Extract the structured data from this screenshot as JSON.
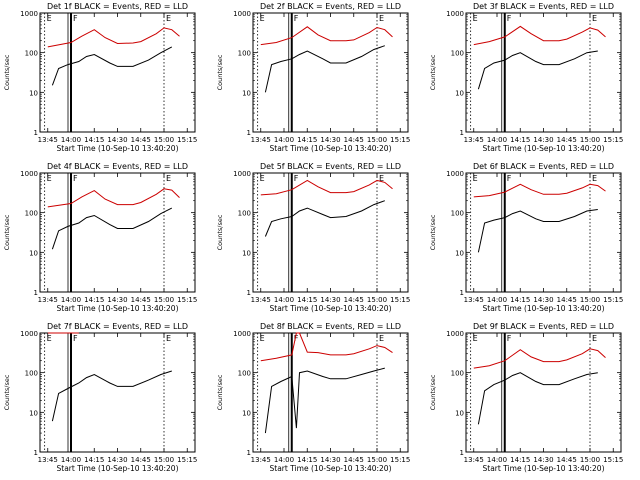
{
  "chart_data": [
    {
      "type": "line",
      "title": "Det 1f BLACK = Events, RED = LLD",
      "xlabel": "Start Time (10-Sep-10 13:40:20)",
      "ylabel": "Counts/sec",
      "x_ticks": [
        "13:45",
        "14:00",
        "14:15",
        "14:30",
        "14:45",
        "15:00",
        "15:15"
      ],
      "y_ticks": [
        "1",
        "10",
        "100",
        "1000"
      ],
      "yscale": "log",
      "ylim": [
        1,
        1000
      ],
      "markers": [
        {
          "label": "E",
          "time": "13:43"
        },
        {
          "label": "F",
          "time": "14:00"
        },
        {
          "label": "E",
          "time": "15:00"
        }
      ],
      "series": [
        {
          "color": "#cc0000",
          "x": [
            "13:45",
            "14:00",
            "14:07",
            "14:15",
            "14:22",
            "14:30",
            "14:40",
            "14:45",
            "14:55",
            "15:00",
            "15:05",
            "15:10"
          ],
          "y": [
            140,
            180,
            260,
            380,
            240,
            170,
            175,
            190,
            300,
            420,
            380,
            260
          ]
        },
        {
          "color": "#000000",
          "x": [
            "13:48",
            "13:52",
            "13:58",
            "14:05",
            "14:10",
            "14:15",
            "14:25",
            "14:30",
            "14:40",
            "14:50",
            "14:58",
            "15:05"
          ],
          "y": [
            15,
            40,
            50,
            60,
            80,
            90,
            55,
            45,
            45,
            65,
            100,
            140
          ]
        }
      ]
    },
    {
      "type": "line",
      "title": "Det 2f BLACK = Events, RED = LLD",
      "xlabel": "Start Time (10-Sep-10 13:40:20)",
      "ylabel": "Counts/sec",
      "x_ticks": [
        "13:45",
        "14:00",
        "14:15",
        "14:30",
        "14:45",
        "15:00",
        "15:15"
      ],
      "y_ticks": [
        "1",
        "10",
        "100",
        "1000"
      ],
      "yscale": "log",
      "ylim": [
        1,
        1000
      ],
      "markers": [
        {
          "label": "E",
          "time": "13:43"
        },
        {
          "label": "F",
          "time": "14:05"
        },
        {
          "label": "E",
          "time": "15:00"
        }
      ],
      "series": [
        {
          "color": "#cc0000",
          "x": [
            "13:45",
            "13:55",
            "14:05",
            "14:15",
            "14:22",
            "14:30",
            "14:40",
            "14:45",
            "14:55",
            "15:00",
            "15:05",
            "15:10"
          ],
          "y": [
            160,
            180,
            240,
            450,
            280,
            200,
            200,
            210,
            320,
            430,
            380,
            250
          ]
        },
        {
          "color": "#000000",
          "x": [
            "13:48",
            "13:52",
            "13:58",
            "14:05",
            "14:10",
            "14:15",
            "14:25",
            "14:30",
            "14:40",
            "14:50",
            "14:58",
            "15:05"
          ],
          "y": [
            10,
            50,
            60,
            70,
            90,
            110,
            70,
            55,
            55,
            80,
            120,
            150
          ]
        }
      ]
    },
    {
      "type": "line",
      "title": "Det 3f BLACK = Events, RED = LLD",
      "xlabel": "Start Time (10-Sep-10 13:40:20)",
      "ylabel": "Counts/sec",
      "x_ticks": [
        "13:45",
        "14:00",
        "14:15",
        "14:30",
        "14:45",
        "15:00",
        "15:15"
      ],
      "y_ticks": [
        "1",
        "10",
        "100",
        "1000"
      ],
      "yscale": "log",
      "ylim": [
        1,
        1000
      ],
      "markers": [
        {
          "label": "E",
          "time": "13:43"
        },
        {
          "label": "F",
          "time": "14:05"
        },
        {
          "label": "E",
          "time": "15:00"
        }
      ],
      "series": [
        {
          "color": "#cc0000",
          "x": [
            "13:45",
            "13:55",
            "14:05",
            "14:15",
            "14:22",
            "14:30",
            "14:40",
            "14:45",
            "14:55",
            "15:00",
            "15:05",
            "15:10"
          ],
          "y": [
            160,
            190,
            250,
            460,
            300,
            200,
            200,
            220,
            330,
            420,
            370,
            250
          ]
        },
        {
          "color": "#000000",
          "x": [
            "13:48",
            "13:52",
            "13:58",
            "14:05",
            "14:10",
            "14:15",
            "14:25",
            "14:30",
            "14:40",
            "14:50",
            "14:58",
            "15:05"
          ],
          "y": [
            12,
            40,
            55,
            65,
            85,
            100,
            60,
            50,
            50,
            70,
            100,
            110
          ]
        }
      ]
    },
    {
      "type": "line",
      "title": "Det 4f BLACK = Events, RED = LLD",
      "xlabel": "Start Time (10-Sep-10 13:40:20)",
      "ylabel": "Counts/sec",
      "x_ticks": [
        "13:45",
        "14:00",
        "14:15",
        "14:30",
        "14:45",
        "15:00",
        "15:15"
      ],
      "y_ticks": [
        "1",
        "10",
        "100",
        "1000"
      ],
      "yscale": "log",
      "ylim": [
        1,
        1000
      ],
      "markers": [
        {
          "label": "E",
          "time": "13:43"
        },
        {
          "label": "F",
          "time": "14:00"
        },
        {
          "label": "E",
          "time": "15:00"
        }
      ],
      "series": [
        {
          "color": "#cc0000",
          "x": [
            "13:45",
            "14:00",
            "14:07",
            "14:15",
            "14:22",
            "14:30",
            "14:40",
            "14:45",
            "14:55",
            "15:00",
            "15:05",
            "15:10"
          ],
          "y": [
            140,
            170,
            250,
            360,
            220,
            160,
            160,
            180,
            290,
            400,
            370,
            240
          ]
        },
        {
          "color": "#000000",
          "x": [
            "13:48",
            "13:52",
            "13:58",
            "14:05",
            "14:10",
            "14:15",
            "14:25",
            "14:30",
            "14:40",
            "14:50",
            "14:58",
            "15:05"
          ],
          "y": [
            12,
            35,
            45,
            55,
            75,
            85,
            50,
            40,
            40,
            60,
            95,
            130
          ]
        }
      ]
    },
    {
      "type": "line",
      "title": "Det 5f BLACK = Events, RED = LLD",
      "xlabel": "Start Time (10-Sep-10 13:40:20)",
      "ylabel": "Counts/sec",
      "x_ticks": [
        "13:45",
        "14:00",
        "14:15",
        "14:30",
        "14:45",
        "15:00",
        "15:15"
      ],
      "y_ticks": [
        "1",
        "10",
        "100",
        "1000"
      ],
      "yscale": "log",
      "ylim": [
        1,
        1000
      ],
      "markers": [
        {
          "label": "E",
          "time": "13:43"
        },
        {
          "label": "F",
          "time": "14:05"
        },
        {
          "label": "E",
          "time": "15:00"
        }
      ],
      "series": [
        {
          "color": "#cc0000",
          "x": [
            "13:45",
            "13:55",
            "14:05",
            "14:15",
            "14:22",
            "14:30",
            "14:40",
            "14:45",
            "14:55",
            "15:00",
            "15:05",
            "15:10"
          ],
          "y": [
            280,
            300,
            380,
            650,
            450,
            320,
            320,
            340,
            500,
            650,
            580,
            400
          ]
        },
        {
          "color": "#000000",
          "x": [
            "13:48",
            "13:52",
            "13:58",
            "14:05",
            "14:10",
            "14:15",
            "14:25",
            "14:30",
            "14:40",
            "14:50",
            "14:58",
            "15:05"
          ],
          "y": [
            25,
            60,
            70,
            80,
            110,
            130,
            90,
            75,
            80,
            110,
            160,
            200
          ]
        }
      ]
    },
    {
      "type": "line",
      "title": "Det 6f BLACK = Events, RED = LLD",
      "xlabel": "Start Time (10-Sep-10 13:40:20)",
      "ylabel": "Counts/sec",
      "x_ticks": [
        "13:45",
        "14:00",
        "14:15",
        "14:30",
        "14:45",
        "15:00",
        "15:15"
      ],
      "y_ticks": [
        "1",
        "10",
        "100",
        "1000"
      ],
      "yscale": "log",
      "ylim": [
        1,
        1000
      ],
      "markers": [
        {
          "label": "E",
          "time": "13:43"
        },
        {
          "label": "F",
          "time": "14:05"
        },
        {
          "label": "E",
          "time": "15:00"
        }
      ],
      "series": [
        {
          "color": "#cc0000",
          "x": [
            "13:45",
            "13:55",
            "14:05",
            "14:15",
            "14:22",
            "14:30",
            "14:40",
            "14:45",
            "14:55",
            "15:00",
            "15:05",
            "15:10"
          ],
          "y": [
            250,
            270,
            330,
            520,
            380,
            290,
            290,
            310,
            420,
            520,
            480,
            350
          ]
        },
        {
          "color": "#000000",
          "x": [
            "13:48",
            "13:52",
            "13:58",
            "14:05",
            "14:10",
            "14:15",
            "14:25",
            "14:30",
            "14:40",
            "14:50",
            "14:58",
            "15:05"
          ],
          "y": [
            10,
            55,
            65,
            75,
            95,
            110,
            70,
            60,
            60,
            80,
            110,
            120
          ]
        }
      ]
    },
    {
      "type": "line",
      "title": "Det 7f BLACK = Events, RED = LLD",
      "xlabel": "Start Time (10-Sep-10 13:40:20)",
      "ylabel": "Counts/sec",
      "x_ticks": [
        "13:45",
        "14:00",
        "14:15",
        "14:30",
        "14:45",
        "15:00",
        "15:15"
      ],
      "y_ticks": [
        "1",
        "10",
        "100",
        "1000"
      ],
      "yscale": "log",
      "ylim": [
        1,
        1000
      ],
      "markers": [
        {
          "label": "E",
          "time": "13:43"
        },
        {
          "label": "F",
          "time": "14:00"
        },
        {
          "label": "E",
          "time": "15:00"
        }
      ],
      "series": [
        {
          "color": "#cc0000",
          "x": [
            "13:45",
            "13:50",
            "14:00",
            "14:05"
          ],
          "y": [
            1000,
            1000,
            1000,
            1000
          ]
        },
        {
          "color": "#000000",
          "x": [
            "13:48",
            "13:52",
            "13:58",
            "14:05",
            "14:10",
            "14:15",
            "14:25",
            "14:30",
            "14:40",
            "14:50",
            "14:58",
            "15:05"
          ],
          "y": [
            6,
            30,
            40,
            55,
            75,
            90,
            55,
            45,
            45,
            65,
            90,
            110
          ]
        }
      ]
    },
    {
      "type": "line",
      "title": "Det 8f BLACK = Events, RED = LLD",
      "xlabel": "Start Time (10-Sep-10 13:40:20)",
      "ylabel": "Counts/sec",
      "x_ticks": [
        "13:45",
        "14:00",
        "14:15",
        "14:30",
        "14:45",
        "15:00",
        "15:15"
      ],
      "y_ticks": [
        "1",
        "10",
        "100",
        "1000"
      ],
      "yscale": "log",
      "ylim": [
        1,
        1000
      ],
      "markers": [
        {
          "label": "E",
          "time": "13:43"
        },
        {
          "label": "F",
          "time": "14:05"
        },
        {
          "label": "E",
          "time": "15:00"
        }
      ],
      "series": [
        {
          "color": "#cc0000",
          "x": [
            "13:45",
            "13:55",
            "14:05",
            "14:08",
            "14:10",
            "14:15",
            "14:22",
            "14:30",
            "14:40",
            "14:45",
            "14:55",
            "15:00",
            "15:05",
            "15:10"
          ],
          "y": [
            200,
            230,
            280,
            1000,
            1000,
            330,
            320,
            280,
            280,
            300,
            400,
            480,
            430,
            320
          ]
        },
        {
          "color": "#000000",
          "x": [
            "13:48",
            "13:52",
            "13:58",
            "14:05",
            "14:08",
            "14:10",
            "14:15",
            "14:25",
            "14:30",
            "14:40",
            "14:50",
            "14:58",
            "15:05"
          ],
          "y": [
            3,
            45,
            60,
            80,
            4,
            100,
            110,
            80,
            70,
            70,
            90,
            110,
            130
          ]
        }
      ]
    },
    {
      "type": "line",
      "title": "Det 9f BLACK = Events, RED = LLD",
      "xlabel": "Start Time (10-Sep-10 13:40:20)",
      "ylabel": "Counts/sec",
      "x_ticks": [
        "13:45",
        "14:00",
        "14:15",
        "14:30",
        "14:45",
        "15:00",
        "15:15"
      ],
      "y_ticks": [
        "1",
        "10",
        "100",
        "1000"
      ],
      "yscale": "log",
      "ylim": [
        1,
        1000
      ],
      "markers": [
        {
          "label": "E",
          "time": "13:43"
        },
        {
          "label": "F",
          "time": "14:05"
        },
        {
          "label": "E",
          "time": "15:00"
        }
      ],
      "series": [
        {
          "color": "#cc0000",
          "x": [
            "13:45",
            "13:55",
            "14:05",
            "14:15",
            "14:22",
            "14:30",
            "14:40",
            "14:45",
            "14:55",
            "15:00",
            "15:05",
            "15:10"
          ],
          "y": [
            130,
            150,
            200,
            380,
            250,
            190,
            190,
            210,
            300,
            400,
            360,
            240
          ]
        },
        {
          "color": "#000000",
          "x": [
            "13:48",
            "13:52",
            "13:58",
            "14:05",
            "14:10",
            "14:15",
            "14:25",
            "14:30",
            "14:40",
            "14:50",
            "14:58",
            "15:05"
          ],
          "y": [
            5,
            35,
            50,
            65,
            85,
            100,
            60,
            50,
            50,
            70,
            90,
            100
          ]
        }
      ]
    }
  ]
}
